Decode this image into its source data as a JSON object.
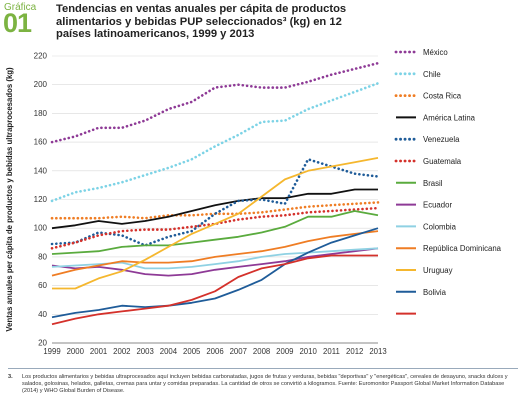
{
  "header": {
    "label": "Gráfica",
    "number": "01",
    "title": "Tendencias en ventas anuales per cápita de productos alimentarios y bebidas PUP seleccionados³ (kg) en 12 países latinoamericanos, 1999 y 2013"
  },
  "chart_data": {
    "type": "line",
    "title": "Tendencias en ventas anuales per cápita de productos alimentarios y bebidas PUP seleccionados³ (kg) en 12 países latinoamericanos, 1999 y 2013",
    "xlabel": "",
    "ylabel": "Ventas anuales per cápita de productos y bebidas ultraprocesados (kg)",
    "x": [
      1999,
      2000,
      2001,
      2002,
      2003,
      2004,
      2005,
      2006,
      2007,
      2008,
      2009,
      2010,
      2011,
      2012,
      2013
    ],
    "x_ticks": [
      "1999",
      "2000",
      "2001",
      "2002",
      "2003",
      "2004",
      "2005",
      "2006",
      "2007",
      "2008",
      "2009",
      "2010",
      "2011",
      "2012",
      "2013"
    ],
    "ylim": [
      20,
      220
    ],
    "y_ticks": [
      20,
      40,
      60,
      80,
      100,
      120,
      140,
      160,
      180,
      200,
      220
    ],
    "grid": true,
    "legend_position": "right",
    "series": [
      {
        "name": "México",
        "color": "#8e3a96",
        "dash": "dotted",
        "values": [
          160,
          164,
          170,
          170,
          175,
          183,
          188,
          198,
          200,
          198,
          198,
          202,
          207,
          211,
          215
        ]
      },
      {
        "name": "Chile",
        "color": "#7dd3e6",
        "dash": "dotted",
        "values": [
          119,
          125,
          128,
          132,
          137,
          142,
          148,
          157,
          165,
          174,
          175,
          183,
          189,
          195,
          201
        ]
      },
      {
        "name": "Costa Rica",
        "color": "#ef7d24",
        "dash": "dotted",
        "values": [
          107,
          107,
          107,
          108,
          107,
          109,
          109,
          110,
          110,
          111,
          113,
          115,
          116,
          117,
          118
        ]
      },
      {
        "name": "América Latina",
        "color": "#111111",
        "dash": "solid",
        "values": [
          100,
          102,
          105,
          103,
          105,
          108,
          112,
          116,
          119,
          121,
          121,
          124,
          124,
          127,
          127
        ]
      },
      {
        "name": "Venezuela",
        "color": "#1f5c99",
        "dash": "dotted",
        "values": [
          89,
          90,
          97,
          95,
          88,
          94,
          98,
          110,
          119,
          120,
          117,
          148,
          143,
          138,
          136
        ]
      },
      {
        "name": "Guatemala",
        "color": "#d4312b",
        "dash": "dotted",
        "values": [
          86,
          90,
          95,
          98,
          99,
          99,
          101,
          103,
          106,
          108,
          109,
          111,
          112,
          113,
          114
        ]
      },
      {
        "name": "Brasil",
        "color": "#5aab3e",
        "dash": "solid",
        "values": [
          82,
          83,
          84,
          87,
          88,
          88,
          90,
          92,
          94,
          97,
          101,
          108,
          108,
          112,
          109
        ]
      },
      {
        "name": "Ecuador",
        "color": "#8e3a96",
        "dash": "solid",
        "values": [
          74,
          72,
          73,
          71,
          68,
          67,
          68,
          71,
          73,
          75,
          77,
          80,
          82,
          84,
          86
        ]
      },
      {
        "name": "Colombia",
        "color": "#8fd1e3",
        "dash": "solid",
        "values": [
          73,
          74,
          75,
          76,
          72,
          72,
          73,
          75,
          77,
          80,
          82,
          83,
          84,
          85,
          86
        ]
      },
      {
        "name": "República Dominicana",
        "color": "#ef7d24",
        "dash": "solid",
        "values": [
          67,
          71,
          74,
          77,
          76,
          76,
          77,
          80,
          82,
          84,
          87,
          91,
          94,
          96,
          98
        ]
      },
      {
        "name": "Uruguay",
        "color": "#f5b72e",
        "dash": "solid",
        "values": [
          58,
          58,
          65,
          70,
          78,
          87,
          96,
          103,
          110,
          122,
          134,
          140,
          143,
          146,
          149
        ]
      },
      {
        "name": "Bolivia",
        "color": "#1f5c99",
        "dash": "solid",
        "values": [
          38,
          41,
          43,
          46,
          45,
          46,
          48,
          51,
          57,
          64,
          75,
          83,
          90,
          95,
          100
        ]
      },
      {
        "name": "",
        "color": "#d4312b",
        "dash": "solid",
        "values": [
          33,
          37,
          40,
          42,
          44,
          46,
          50,
          56,
          66,
          72,
          75,
          79,
          81,
          81,
          81
        ]
      }
    ]
  },
  "footnote": {
    "number": "3.",
    "text": "Los productos alimentarios y bebidas ultraprocesados aquí incluyen bebidas carbonatadas, jugos de frutas y verduras, bebidas \"deportivas\" y \"energéticas\", cereales de desayuno, snacks dulces y salados, golosinas, helados, galletas, cremas para untar y comidas preparadas. La cantidad de otros se convirtió a kilogramos. Fuente: Euromonitor Passport Global Market Information Database (2014) y WHO Global Burden of Disease."
  }
}
